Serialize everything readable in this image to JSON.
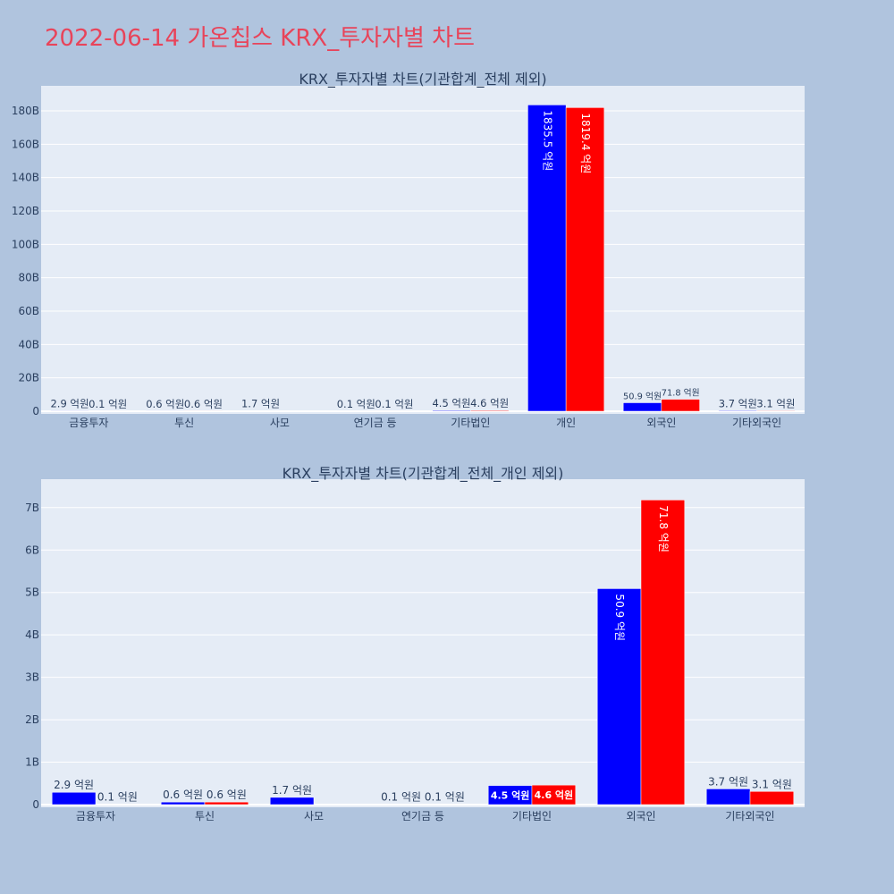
{
  "page": {
    "title": "2022-06-14 가온칩스 KRX_투자자별 차트"
  },
  "colors": {
    "page_bg": "#B0C4DE",
    "plot_bg": "#E5ECF6",
    "title": "#E8445A",
    "buy": "#0000FF",
    "sell": "#FF0000",
    "text": "#2a3f5f"
  },
  "chart_data": [
    {
      "type": "bar",
      "title": "KRX_투자자별 차트(기관합계_전체 제외)",
      "categories": [
        "금융투자",
        "투신",
        "사모",
        "연기금 등",
        "기타법인",
        "개인",
        "외국인",
        "기타외국인"
      ],
      "ylim": [
        0,
        195
      ],
      "yticks": [
        0,
        20,
        40,
        60,
        80,
        100,
        120,
        140,
        160,
        180
      ],
      "ytick_labels": [
        "0",
        "20B",
        "40B",
        "60B",
        "80B",
        "100B",
        "120B",
        "140B",
        "160B",
        "180B"
      ],
      "grid": true,
      "series": [
        {
          "values": [
            0.29,
            0.06,
            0.17,
            0.01,
            0.45,
            183.55,
            5.09,
            0.37
          ],
          "labels": [
            "2.9 억원",
            "0.6 억원",
            "1.7 억원",
            "0.1 억원",
            "4.5 억원",
            "1835.5 억원",
            "50.9 억원",
            "3.7 억원"
          ]
        },
        {
          "values": [
            0.01,
            0.06,
            0,
            0.01,
            0.46,
            181.94,
            7.18,
            0.31
          ],
          "labels": [
            "0.1 억원",
            "0.6 억원",
            "",
            "0.1 억원",
            "4.6 억원",
            "1819.4 억원",
            "71.8 억원",
            "3.1 억원"
          ]
        }
      ]
    },
    {
      "type": "bar",
      "title": "KRX_투자자별 차트(기관합계_전체_개인 제외)",
      "categories": [
        "금융투자",
        "투신",
        "사모",
        "연기금 등",
        "기타법인",
        "외국인",
        "기타외국인"
      ],
      "ylim": [
        0,
        7.67
      ],
      "yticks": [
        0,
        1,
        2,
        3,
        4,
        5,
        6,
        7
      ],
      "ytick_labels": [
        "0",
        "1B",
        "2B",
        "3B",
        "4B",
        "5B",
        "6B",
        "7B"
      ],
      "grid": true,
      "series": [
        {
          "values": [
            0.29,
            0.06,
            0.17,
            0.01,
            0.45,
            5.09,
            0.37
          ],
          "labels": [
            "2.9 억원",
            "0.6 억원",
            "1.7 억원",
            "0.1 억원",
            "4.5 억원",
            "50.9 억원",
            "3.7 억원"
          ]
        },
        {
          "values": [
            0.01,
            0.06,
            0,
            0.01,
            0.46,
            7.18,
            0.31
          ],
          "labels": [
            "0.1 억원",
            "0.6 억원",
            "",
            "0.1 억원",
            "4.6 억원",
            "71.8 억원",
            "3.1 억원"
          ]
        }
      ]
    }
  ]
}
